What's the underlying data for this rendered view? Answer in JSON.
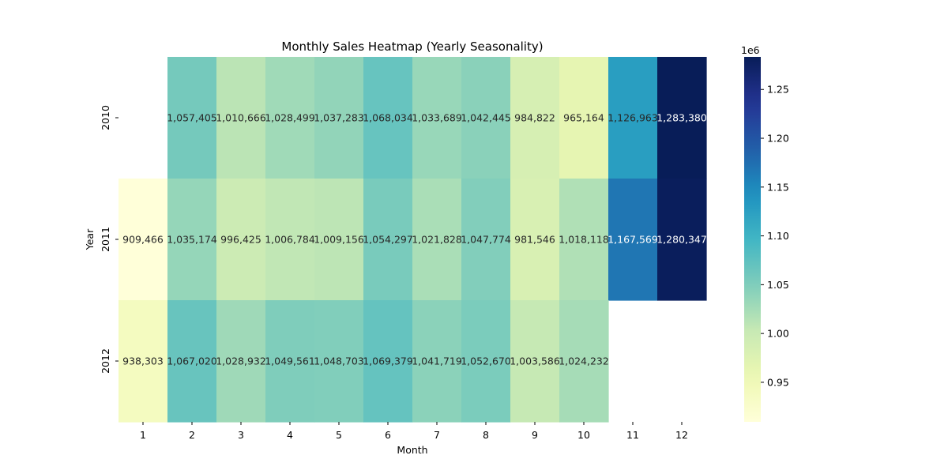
{
  "chart_data": {
    "type": "heatmap",
    "title": "Monthly Sales Heatmap (Yearly Seasonality)",
    "xlabel": "Month",
    "ylabel": "Year",
    "x_categories": [
      "1",
      "2",
      "3",
      "4",
      "5",
      "6",
      "7",
      "8",
      "9",
      "10",
      "11",
      "12"
    ],
    "y_categories": [
      "2010",
      "2011",
      "2012"
    ],
    "values": [
      [
        null,
        1057405,
        1010666,
        1028499,
        1037283,
        1068034,
        1033689,
        1042445,
        984822,
        965164,
        1126963,
        1283380
      ],
      [
        909466,
        1035174,
        996425,
        1006784,
        1009156,
        1054297,
        1021828,
        1047774,
        981546,
        1018118,
        1167569,
        1280347
      ],
      [
        938303,
        1067020,
        1028932,
        1049561,
        1048703,
        1069379,
        1041719,
        1052670,
        1003586,
        1024232,
        null,
        null
      ]
    ],
    "value_labels": [
      [
        "",
        "1,057,405",
        "1,010,666",
        "1,028,499",
        "1,037,283",
        "1,068,034",
        "1,033,689",
        "1,042,445",
        "984,822",
        "965,164",
        "1,126,963",
        "1,283,380"
      ],
      [
        "909,466",
        "1,035,174",
        "996,425",
        "1,006,784",
        "1,009,156",
        "1,054,297",
        "1,021,828",
        "1,047,774",
        "981,546",
        "1,018,118",
        "1,167,569",
        "1,280,347"
      ],
      [
        "938,303",
        "1,067,020",
        "1,028,932",
        "1,049,561",
        "1,048,703",
        "1,069,379",
        "1,041,719",
        "1,052,670",
        "1,003,586",
        "1,024,232",
        "",
        ""
      ]
    ],
    "colormap": "YlGnBu",
    "vmin": 909466,
    "vmax": 1283380,
    "colorbar": {
      "ticks": [
        0.95,
        1.0,
        1.05,
        1.1,
        1.15,
        1.2,
        1.25
      ],
      "tick_labels": [
        "0.95",
        "1.00",
        "1.05",
        "1.10",
        "1.15",
        "1.20",
        "1.25"
      ],
      "offset_label": "1e6",
      "scale": 1000000
    },
    "legend": "colorbar right"
  }
}
